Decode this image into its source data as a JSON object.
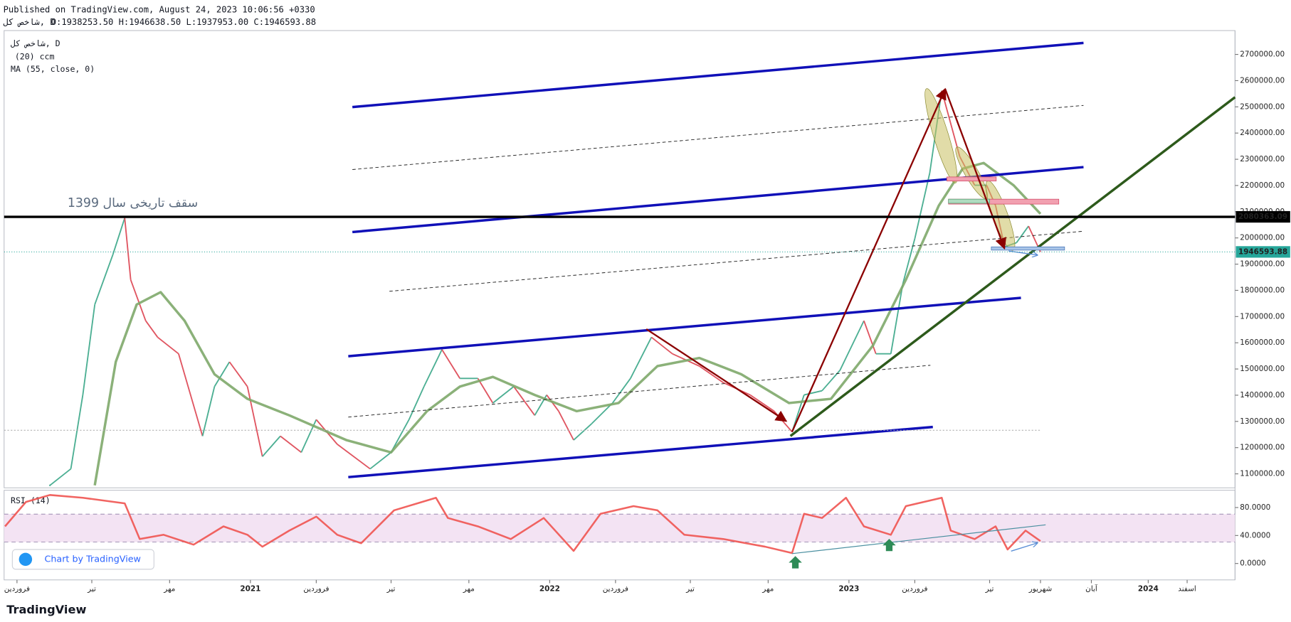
{
  "header": {
    "published": "Published on TradingView.com, August 24, 2023 10:06:56 +0330",
    "symbol": "شاخص کل, D",
    "ohlc": "O:1938253.50 H:1946638.50 L:1937953.00 C:1946593.88"
  },
  "legend": [
    "شاخص کل, D",
    "(20) ccm",
    "MA (55, close, 0)"
  ],
  "annotation": "1399 سقف تاریخی سال",
  "badge": "Chart by TradingView",
  "footer": "TradingView",
  "chart_data": [
    {
      "type": "line",
      "xlim": [
        2020.177,
        2024.29
      ],
      "ylim": [
        1046700,
        2791000
      ],
      "yticks": [
        {
          "value": 1100000,
          "label": "1100000.00"
        },
        {
          "value": 1200000,
          "label": "1200000.00"
        },
        {
          "value": 1300000,
          "label": "1300000.00"
        },
        {
          "value": 1400000,
          "label": "1400000.00"
        },
        {
          "value": 1500000,
          "label": "1500000.00"
        },
        {
          "value": 1600000,
          "label": "1600000.00"
        },
        {
          "value": 1700000,
          "label": "1700000.00"
        },
        {
          "value": 1800000,
          "label": "1800000.00"
        },
        {
          "value": 1900000,
          "label": "1900000.00"
        },
        {
          "value": 2000000,
          "label": "2000000.00"
        },
        {
          "value": 2100000,
          "label": "2100000.00"
        },
        {
          "value": 2200000,
          "label": "2200000.00"
        },
        {
          "value": 2300000,
          "label": "2300000.00"
        },
        {
          "value": 2400000,
          "label": "2400000.00"
        },
        {
          "value": 2500000,
          "label": "2500000.00"
        },
        {
          "value": 2600000,
          "label": "2600000.00"
        },
        {
          "value": 2700000,
          "label": "2700000.00"
        }
      ],
      "grid": false,
      "hlines": [
        {
          "value": 2080363.09,
          "color": "#000000",
          "style": "solid"
        },
        {
          "value": 1946593.88,
          "color": "#26a69a",
          "style": "dotted"
        }
      ],
      "series": [
        {
          "name": "شاخص کل",
          "color": "#e05561",
          "up_color": "#4caf93",
          "x": [
            2020.33,
            2020.4,
            2020.44,
            2020.48,
            2020.54,
            2020.58,
            2020.6,
            2020.65,
            2020.69,
            2020.76,
            2020.84,
            2020.88,
            2020.93,
            2020.99,
            2021.04,
            2021.1,
            2021.17,
            2021.22,
            2021.29,
            2021.4,
            2021.47,
            2021.53,
            2021.58,
            2021.64,
            2021.7,
            2021.76,
            2021.81,
            2021.88,
            2021.95,
            2021.99,
            2022.03,
            2022.08,
            2022.14,
            2022.21,
            2022.27,
            2022.34,
            2022.41,
            2022.5,
            2022.58,
            2022.67,
            2022.75,
            2022.81,
            2022.85,
            2022.91,
            2022.97,
            2023.05,
            2023.09,
            2023.14,
            2023.18,
            2023.22,
            2023.27,
            2023.31,
            2023.37,
            2023.42,
            2023.46,
            2023.49,
            2023.52,
            2023.56,
            2023.6,
            2023.64
          ],
          "values": [
            1056000,
            1119000,
            1401000,
            1746000,
            1935000,
            2076000,
            1840000,
            1684000,
            1621000,
            1558000,
            1244000,
            1433000,
            1527000,
            1433000,
            1166000,
            1244000,
            1182000,
            1307000,
            1213000,
            1119000,
            1182000,
            1307000,
            1433000,
            1574000,
            1464000,
            1464000,
            1370000,
            1433000,
            1323000,
            1401000,
            1339000,
            1229000,
            1291000,
            1370000,
            1464000,
            1621000,
            1558000,
            1511000,
            1448000,
            1401000,
            1339000,
            1260000,
            1401000,
            1417000,
            1495000,
            1684000,
            1558000,
            1558000,
            1825000,
            1997000,
            2248000,
            2562000,
            2311000,
            2201000,
            2201000,
            2123000,
            1966000,
            1982000,
            2045000,
            1946594
          ]
        },
        {
          "name": "MA (55, close, 0)",
          "color": "#7ea86a",
          "x": [
            2020.48,
            2020.55,
            2020.62,
            2020.7,
            2020.78,
            2020.88,
            2020.99,
            2021.13,
            2021.32,
            2021.47,
            2021.59,
            2021.7,
            2021.81,
            2021.95,
            2022.09,
            2022.23,
            2022.36,
            2022.5,
            2022.64,
            2022.8,
            2022.94,
            2023.08,
            2023.19,
            2023.3,
            2023.38,
            2023.45,
            2023.55,
            2023.64
          ],
          "values": [
            1056000,
            1527000,
            1746000,
            1793000,
            1684000,
            1480000,
            1386000,
            1323000,
            1229000,
            1182000,
            1339000,
            1433000,
            1470000,
            1401000,
            1339000,
            1370000,
            1511000,
            1542000,
            1480000,
            1370000,
            1386000,
            1589000,
            1840000,
            2123000,
            2264000,
            2286000,
            2201000,
            2092000
          ]
        }
      ]
    },
    {
      "type": "line",
      "title": "RSI (14)",
      "xlim": [
        2020.177,
        2024.29
      ],
      "ylim": [
        -23.5,
        103.5
      ],
      "yticks": [
        {
          "value": 0,
          "label": "0.0000"
        },
        {
          "value": 40,
          "label": "40.0000"
        },
        {
          "value": 80,
          "label": "80.0000"
        }
      ],
      "xticks": [
        {
          "value": 2020.22,
          "label": "فروردین"
        },
        {
          "value": 2020.47,
          "label": "تیر"
        },
        {
          "value": 2020.73,
          "label": "مهر"
        },
        2021,
        {
          "value": 2021.22,
          "label": "فروردین"
        },
        {
          "value": 2021.47,
          "label": "تیر"
        },
        {
          "value": 2021.73,
          "label": "مهر"
        },
        2022,
        {
          "value": 2022.22,
          "label": "فروردین"
        },
        {
          "value": 2022.47,
          "label": "تیر"
        },
        {
          "value": 2022.73,
          "label": "مهر"
        },
        2023,
        {
          "value": 2023.22,
          "label": "فروردین"
        },
        {
          "value": 2023.47,
          "label": "تیر"
        },
        {
          "value": 2023.64,
          "label": "شهریور"
        },
        {
          "value": 2023.81,
          "label": "آبان"
        },
        2024,
        {
          "value": 2024.13,
          "label": "اسفند"
        }
      ],
      "series": [
        {
          "name": "RSI",
          "color": "#ef5350",
          "x": [
            2020.18,
            2020.25,
            2020.33,
            2020.44,
            2020.58,
            2020.63,
            2020.71,
            2020.81,
            2020.91,
            2020.99,
            2021.04,
            2021.13,
            2021.22,
            2021.29,
            2021.37,
            2021.48,
            2021.62,
            2021.66,
            2021.76,
            2021.87,
            2021.98,
            2022.08,
            2022.17,
            2022.28,
            2022.36,
            2022.45,
            2022.58,
            2022.72,
            2022.81,
            2022.85,
            2022.91,
            2022.99,
            2023.05,
            2023.14,
            2023.19,
            2023.31,
            2023.34,
            2023.42,
            2023.49,
            2023.53,
            2023.59,
            2023.64
          ],
          "values": [
            53,
            88,
            98,
            94,
            86,
            35,
            41,
            27,
            53,
            41,
            24,
            47,
            67,
            41,
            29,
            76,
            94,
            65,
            53,
            35,
            65,
            18,
            71,
            82,
            76,
            41,
            35,
            24,
            15,
            71,
            65,
            94,
            53,
            41,
            82,
            94,
            47,
            35,
            53,
            20,
            47,
            32
          ]
        }
      ]
    }
  ]
}
